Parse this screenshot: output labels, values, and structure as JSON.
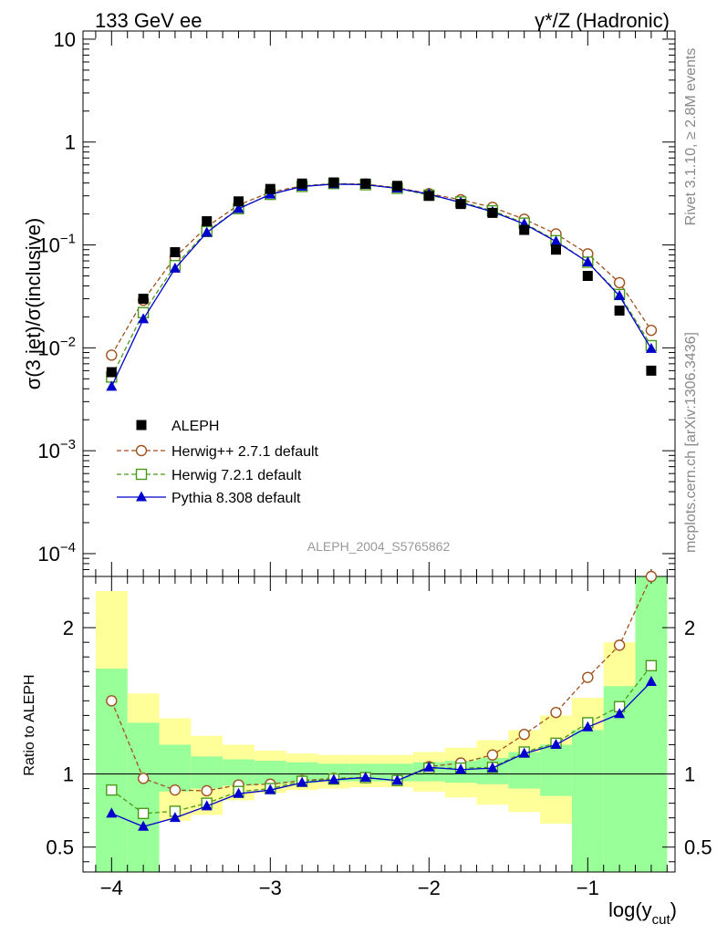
{
  "header": {
    "left": "133 GeV ee",
    "right": "γ*/Z (Hadronic)"
  },
  "side_labels": {
    "rivet": "Rivet 3.1.10, ≥ 2.8M events",
    "mcplots": "mcplots.cern.ch [arXiv:1306.3436]"
  },
  "watermark": "ALEPH_2004_S5765862",
  "colors": {
    "data": "#000000",
    "herwigpp": "#a0521e",
    "herwig7": "#4a9a1a",
    "pythia": "#0000cc",
    "band_inner": "#99ff99",
    "band_outer": "#ffff99"
  },
  "chart_data": [
    {
      "type": "line",
      "ylabel": "σ(3 jet)/σ(inclusive)",
      "yscale": "log",
      "ylim": [
        6e-05,
        12
      ],
      "xlim": [
        -4.18,
        -0.45
      ],
      "y_ticklabels": [
        "10",
        "1",
        "10^-1",
        "10^-2",
        "10^-3",
        "10^-4"
      ],
      "x": [
        -4.0,
        -3.8,
        -3.6,
        -3.4,
        -3.2,
        -3.0,
        -2.8,
        -2.6,
        -2.4,
        -2.2,
        -2.0,
        -1.8,
        -1.6,
        -1.4,
        -1.2,
        -1.0,
        -0.8,
        -0.6
      ],
      "legend_position": "lower-left",
      "series": [
        {
          "name": "ALEPH",
          "key": "data",
          "marker": "square-filled",
          "values": [
            0.0058,
            0.03,
            0.085,
            0.17,
            0.265,
            0.35,
            0.395,
            0.405,
            0.395,
            0.375,
            0.3,
            0.25,
            0.205,
            0.14,
            0.09,
            0.05,
            0.023,
            0.006
          ]
        },
        {
          "name": "Herwig++ 2.7.1 default",
          "key": "herwigpp",
          "marker": "circle-open",
          "dash": "dashed",
          "values": [
            0.0085,
            0.029,
            0.076,
            0.15,
            0.245,
            0.325,
            0.375,
            0.395,
            0.39,
            0.36,
            0.315,
            0.275,
            0.232,
            0.178,
            0.128,
            0.082,
            0.043,
            0.0148
          ]
        },
        {
          "name": "Herwig 7.2.1 default",
          "key": "herwig7",
          "marker": "square-open",
          "dash": "dashed",
          "values": [
            0.0052,
            0.022,
            0.063,
            0.135,
            0.225,
            0.31,
            0.37,
            0.395,
            0.385,
            0.355,
            0.305,
            0.262,
            0.215,
            0.163,
            0.11,
            0.068,
            0.033,
            0.0105
          ]
        },
        {
          "name": "Pythia 8.308 default",
          "key": "pythia",
          "marker": "triangle-filled",
          "dash": "solid",
          "values": [
            0.0042,
            0.019,
            0.059,
            0.132,
            0.225,
            0.31,
            0.37,
            0.39,
            0.385,
            0.355,
            0.312,
            0.258,
            0.21,
            0.16,
            0.108,
            0.068,
            0.032,
            0.0098
          ]
        }
      ]
    },
    {
      "type": "line",
      "ylabel": "Ratio to ALEPH",
      "xlabel": "log(y",
      "xlabel_sub": "cut",
      "xlabel_tail": ")",
      "ylim": [
        0.33,
        2.35
      ],
      "xlim": [
        -4.18,
        -0.45
      ],
      "x_ticklabels": [
        "−4",
        "−3",
        "−2",
        "−1"
      ],
      "y_ticklabels": [
        "0.5",
        "1",
        "2"
      ],
      "bins": [
        [
          -4.1,
          -3.9
        ],
        [
          -3.9,
          -3.7
        ],
        [
          -3.7,
          -3.5
        ],
        [
          -3.5,
          -3.3
        ],
        [
          -3.3,
          -3.1
        ],
        [
          -3.1,
          -2.9
        ],
        [
          -2.9,
          -2.7
        ],
        [
          -2.7,
          -2.5
        ],
        [
          -2.5,
          -2.3
        ],
        [
          -2.3,
          -2.1
        ],
        [
          -2.1,
          -1.9
        ],
        [
          -1.9,
          -1.7
        ],
        [
          -1.7,
          -1.5
        ],
        [
          -1.5,
          -1.3
        ],
        [
          -1.3,
          -1.1
        ],
        [
          -1.1,
          -0.9
        ],
        [
          -0.9,
          -0.7
        ],
        [
          -0.7,
          -0.5
        ]
      ],
      "band_inner": [
        [
          0.1,
          1.72
        ],
        [
          0.1,
          1.35
        ],
        [
          0.88,
          1.2
        ],
        [
          0.9,
          1.12
        ],
        [
          0.92,
          1.1
        ],
        [
          0.93,
          1.09
        ],
        [
          0.94,
          1.08
        ],
        [
          0.95,
          1.07
        ],
        [
          0.95,
          1.07
        ],
        [
          0.95,
          1.07
        ],
        [
          0.95,
          1.08
        ],
        [
          0.94,
          1.09
        ],
        [
          0.93,
          1.11
        ],
        [
          0.9,
          1.15
        ],
        [
          0.85,
          1.2
        ],
        [
          0.1,
          1.3
        ],
        [
          0.1,
          1.6
        ],
        [
          0.1,
          2.4
        ]
      ],
      "band_outer": [
        [
          0.1,
          2.25
        ],
        [
          0.1,
          1.55
        ],
        [
          0.68,
          1.38
        ],
        [
          0.72,
          1.26
        ],
        [
          0.82,
          1.2
        ],
        [
          0.87,
          1.16
        ],
        [
          0.89,
          1.14
        ],
        [
          0.9,
          1.13
        ],
        [
          0.91,
          1.13
        ],
        [
          0.91,
          1.13
        ],
        [
          0.88,
          1.15
        ],
        [
          0.84,
          1.18
        ],
        [
          0.79,
          1.23
        ],
        [
          0.74,
          1.3
        ],
        [
          0.66,
          1.4
        ],
        [
          0.55,
          1.52
        ],
        [
          0.1,
          1.9
        ],
        [
          0.1,
          2.4
        ]
      ],
      "series": [
        {
          "name": "Herwig++ 2.7.1 default",
          "key": "herwigpp",
          "marker": "circle-open",
          "dash": "dashed",
          "values": [
            1.5,
            0.97,
            0.89,
            0.885,
            0.925,
            0.93,
            0.955,
            0.97,
            0.975,
            0.955,
            1.05,
            1.075,
            1.13,
            1.27,
            1.42,
            1.66,
            1.88,
            2.35
          ]
        },
        {
          "name": "Herwig 7.2.1 default",
          "key": "herwig7",
          "marker": "square-open",
          "dash": "dashed",
          "values": [
            0.89,
            0.73,
            0.745,
            0.8,
            0.88,
            0.9,
            0.95,
            0.965,
            0.975,
            0.955,
            1.04,
            1.04,
            1.045,
            1.15,
            1.21,
            1.35,
            1.46,
            1.74
          ]
        },
        {
          "name": "Pythia 8.308 default",
          "key": "pythia",
          "marker": "triangle-filled",
          "dash": "solid",
          "values": [
            0.73,
            0.64,
            0.7,
            0.78,
            0.865,
            0.89,
            0.94,
            0.96,
            0.975,
            0.955,
            1.045,
            1.03,
            1.04,
            1.14,
            1.2,
            1.32,
            1.41,
            1.63
          ]
        }
      ]
    }
  ]
}
